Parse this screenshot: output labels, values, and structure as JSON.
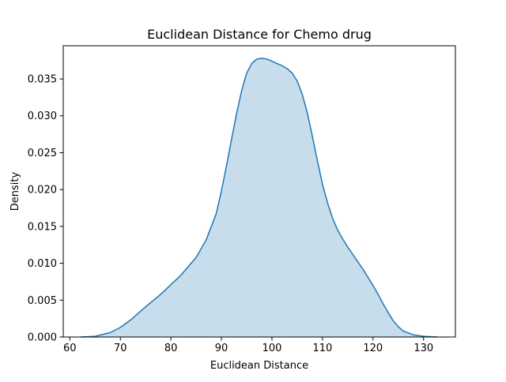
{
  "chart_data": {
    "type": "area",
    "title": "Euclidean Distance for Chemo drug",
    "xlabel": "Euclidean Distance",
    "ylabel": "Density",
    "xlim": [
      58.7,
      136.3
    ],
    "ylim": [
      0,
      0.0395
    ],
    "x_ticks": [
      60,
      70,
      80,
      90,
      100,
      110,
      120,
      130
    ],
    "x_tick_labels": [
      "60",
      "70",
      "80",
      "90",
      "100",
      "110",
      "120",
      "130"
    ],
    "y_ticks": [
      0,
      0.005,
      0.01,
      0.015,
      0.02,
      0.025,
      0.03,
      0.035
    ],
    "y_tick_labels": [
      "0.000",
      "0.005",
      "0.010",
      "0.015",
      "0.020",
      "0.025",
      "0.030",
      "0.035"
    ],
    "grid": false,
    "legend": false,
    "series": [
      {
        "line_color": "#1f77b4",
        "fill_color": "#1f77b4",
        "fill_opacity": 0.25,
        "x": [
          62.2,
          65,
          68,
          70,
          72,
          75,
          78,
          80,
          82,
          85,
          87,
          89,
          90,
          91,
          92,
          93,
          94,
          95,
          96,
          97,
          98,
          99,
          100,
          101,
          102,
          103,
          104,
          105,
          106,
          107,
          108,
          109,
          110,
          111,
          112,
          113,
          114,
          115,
          116,
          117,
          118,
          119,
          120,
          121,
          122,
          123,
          124,
          125,
          126,
          128,
          130,
          132.7
        ],
        "y": [
          0.0,
          0.0001,
          0.0006,
          0.0013,
          0.0023,
          0.0041,
          0.0058,
          0.0071,
          0.0084,
          0.0108,
          0.0132,
          0.0168,
          0.0198,
          0.0232,
          0.0268,
          0.0303,
          0.0334,
          0.0358,
          0.0371,
          0.0377,
          0.0378,
          0.0377,
          0.0374,
          0.0371,
          0.0368,
          0.0364,
          0.0358,
          0.0347,
          0.0329,
          0.0304,
          0.0272,
          0.0239,
          0.0207,
          0.0182,
          0.0161,
          0.0145,
          0.0133,
          0.0122,
          0.0112,
          0.0102,
          0.0092,
          0.0081,
          0.007,
          0.0058,
          0.0045,
          0.0033,
          0.0022,
          0.0014,
          0.0008,
          0.0003,
          0.0001,
          0.0
        ]
      }
    ]
  }
}
